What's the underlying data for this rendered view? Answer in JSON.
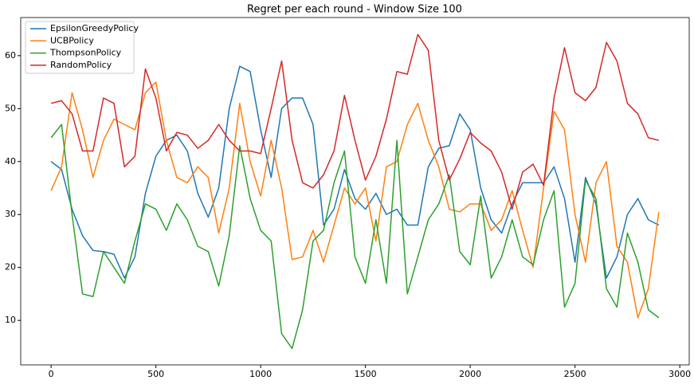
{
  "chart_data": {
    "type": "line",
    "title": "Regret per each round - Window Size 100",
    "x": [
      0,
      50,
      100,
      150,
      200,
      250,
      300,
      350,
      400,
      450,
      500,
      550,
      600,
      650,
      700,
      750,
      800,
      850,
      900,
      950,
      1000,
      1050,
      1100,
      1150,
      1200,
      1250,
      1300,
      1350,
      1400,
      1450,
      1500,
      1550,
      1600,
      1650,
      1700,
      1750,
      1800,
      1850,
      1900,
      1950,
      2000,
      2050,
      2100,
      2150,
      2200,
      2250,
      2300,
      2350,
      2400,
      2450,
      2500,
      2550,
      2600,
      2650,
      2700,
      2750,
      2800,
      2850,
      2900
    ],
    "series": [
      {
        "name": "EpsilonGreedyPolicy",
        "color": "#1f77b4",
        "values": [
          40,
          38.5,
          31,
          26,
          23.2,
          23,
          22.5,
          18,
          22,
          34,
          41,
          44,
          45,
          42,
          34,
          29.5,
          35,
          50,
          58,
          57,
          46,
          37,
          50,
          52,
          52,
          47,
          28,
          31,
          38.5,
          33,
          31,
          34,
          30,
          31,
          28,
          28,
          39,
          42.5,
          43,
          49,
          46,
          35,
          29,
          26.5,
          32,
          36,
          36,
          36,
          39,
          33,
          21,
          37,
          32,
          18,
          22,
          30,
          33,
          29,
          28
        ]
      },
      {
        "name": "UCBPolicy",
        "color": "#ff7f0e",
        "values": [
          34.5,
          39,
          53,
          46,
          37,
          44,
          48,
          47,
          46,
          53,
          55,
          44,
          37,
          36,
          39,
          37,
          26.5,
          35,
          51,
          40,
          33.5,
          44,
          35,
          21.5,
          22,
          27,
          21,
          28,
          35,
          32,
          35,
          25,
          39,
          40,
          47,
          51,
          44,
          39,
          31,
          30.5,
          32,
          32,
          27,
          29,
          34.5,
          27,
          20,
          35,
          49.5,
          46,
          30,
          21,
          36,
          40,
          24,
          21,
          10.5,
          16,
          30.5
        ]
      },
      {
        "name": "ThompsonPolicy",
        "color": "#2ca02c",
        "values": [
          44.5,
          47,
          30,
          15,
          14.5,
          23,
          20,
          17,
          25,
          32,
          31,
          27,
          32,
          29,
          24,
          23,
          16.5,
          26,
          43,
          33,
          27,
          25,
          7.5,
          4.7,
          12,
          25,
          27,
          36,
          42,
          22,
          17,
          29,
          17,
          44,
          15,
          22,
          29,
          32,
          37.5,
          23,
          20.5,
          33.5,
          18,
          22,
          29,
          22,
          20.5,
          29,
          34.5,
          12.5,
          17,
          36.5,
          33,
          16,
          12.5,
          26.5,
          21,
          12,
          10.5
        ]
      },
      {
        "name": "RandomPolicy",
        "color": "#d62728",
        "values": [
          51,
          51.5,
          49,
          42,
          42,
          52,
          51,
          39,
          41,
          57.5,
          52,
          42,
          45.5,
          45,
          42.5,
          44,
          47,
          44,
          42,
          42,
          41.5,
          50,
          59,
          44,
          36,
          35,
          37.5,
          42,
          52.5,
          44,
          36.5,
          41,
          48,
          57,
          56.5,
          64,
          61,
          44,
          36.5,
          40.5,
          45.5,
          43.5,
          42,
          38,
          31,
          38,
          39.5,
          35.5,
          52,
          61.5,
          53,
          51.5,
          54,
          62.5,
          59,
          51,
          49,
          44.5,
          44
        ]
      }
    ],
    "xlim": [
      -145,
      3045
    ],
    "ylim": [
      1.6,
      67.2
    ],
    "xticks": [
      0,
      500,
      1000,
      1500,
      2000,
      2500,
      3000
    ],
    "yticks": [
      10,
      20,
      30,
      40,
      50,
      60
    ],
    "legend": "upper-left"
  }
}
